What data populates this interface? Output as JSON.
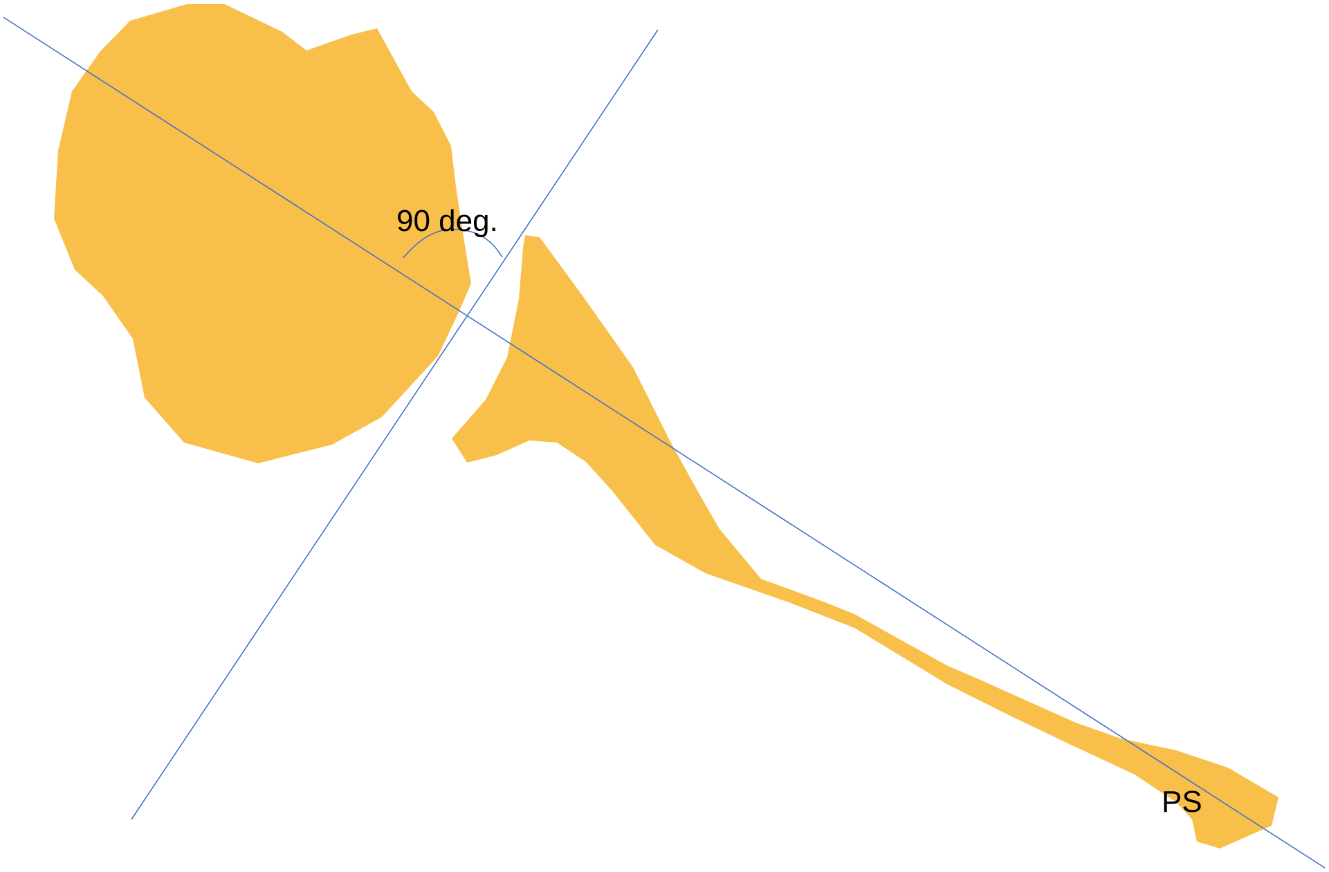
{
  "diagram": {
    "angle_label": "90 deg.",
    "endpoint_label": "PS",
    "colors": {
      "shape_fill": "#F8C04A",
      "line_stroke": "#4472C4",
      "text": "#000000",
      "background": "#FFFFFF"
    }
  }
}
